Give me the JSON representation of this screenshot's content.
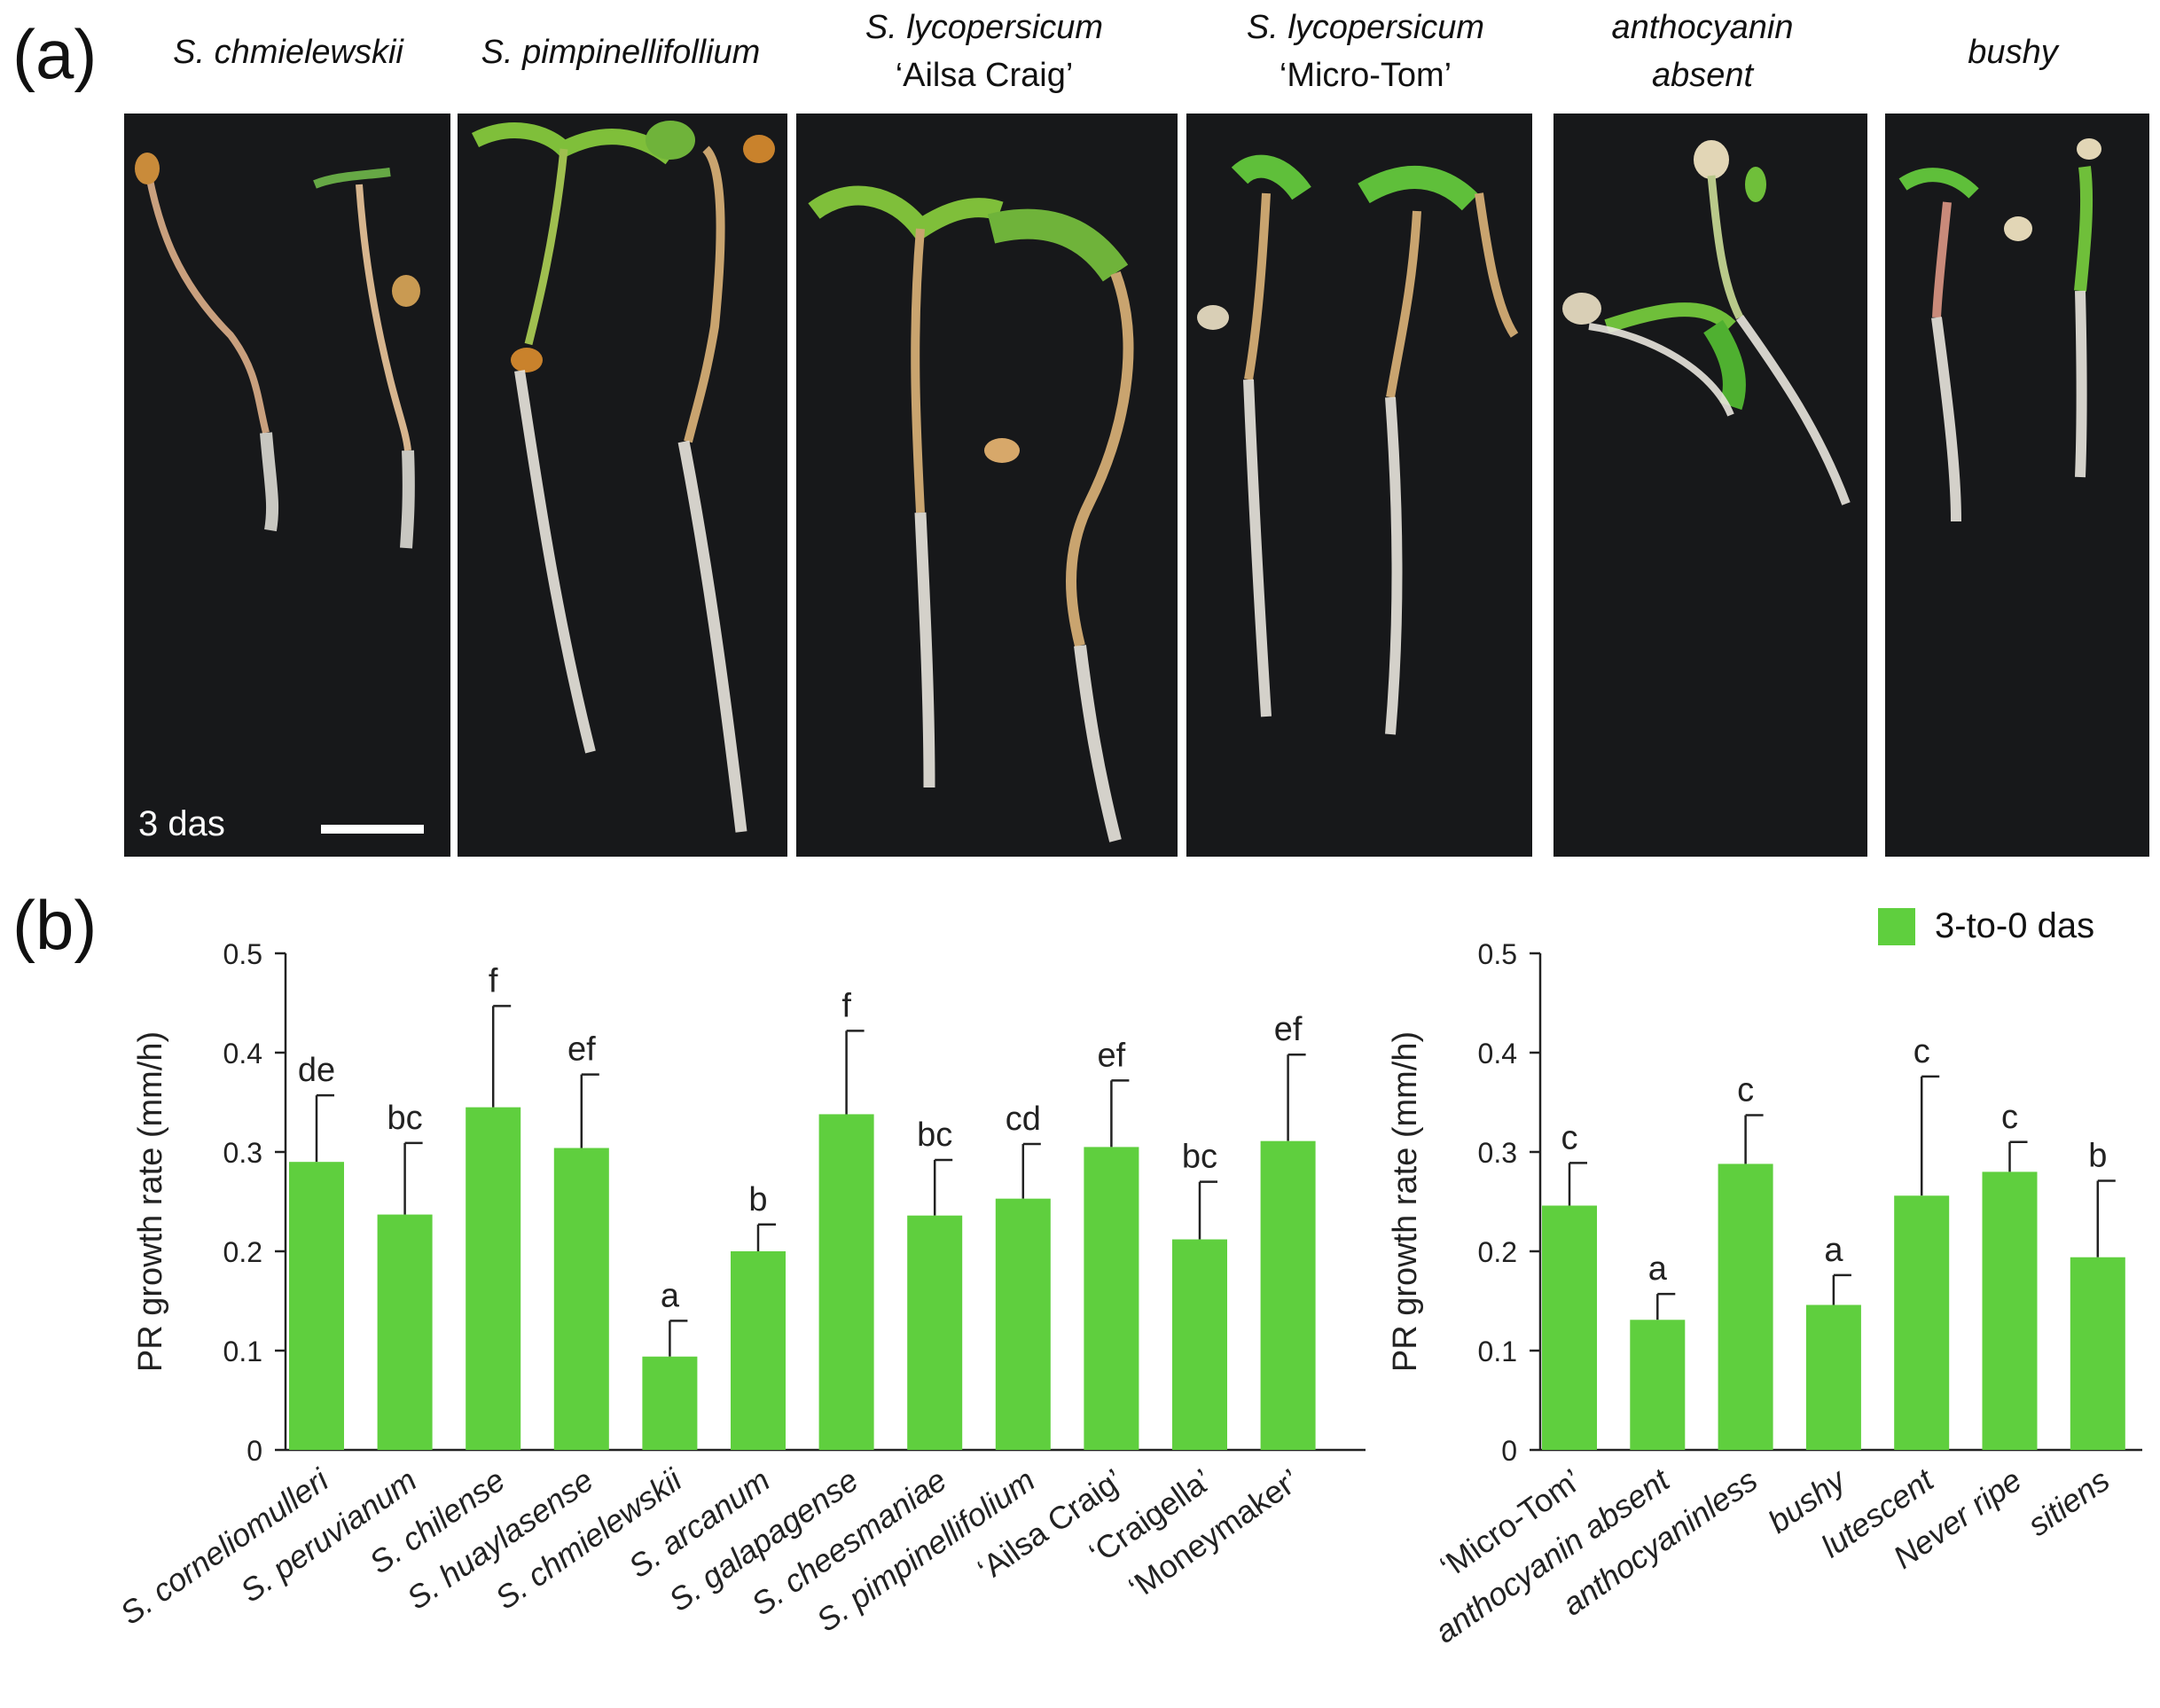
{
  "panel_a": {
    "letter": "(a)",
    "scale_text": "3 das",
    "photos": [
      {
        "title": [
          "S. chmielewskii"
        ],
        "name": "photo-s-chmielewskii"
      },
      {
        "title": [
          "S. pimpinellifollium"
        ],
        "name": "photo-s-pimpinellifollium"
      },
      {
        "title": [
          "S. lycopersicum",
          "‘Ailsa Craig’"
        ],
        "name": "photo-ailsa-craig"
      },
      {
        "title": [
          "S. lycopersicum",
          "‘Micro-Tom’"
        ],
        "name": "photo-micro-tom"
      },
      {
        "title": [
          "anthocyanin",
          "absent"
        ],
        "name": "photo-anthocyanin-absent"
      },
      {
        "title": [
          "bushy"
        ],
        "name": "photo-bushy"
      }
    ]
  },
  "panel_b": {
    "letter": "(b)",
    "legend": {
      "label": "3-to-0 das",
      "color": "#5fcf3e"
    }
  },
  "chart_data": [
    {
      "type": "bar",
      "title": "",
      "xlabel": "",
      "ylabel": "PR growth rate (mm/h)",
      "ylim": [
        0,
        0.5
      ],
      "yticks": [
        "0",
        "0.1",
        "0.2",
        "0.3",
        "0.4",
        "0.5"
      ],
      "categories": [
        "S. corneliomulleri",
        "S. peruvianum",
        "S. chilense",
        "S. huaylasense",
        "S. chmielewskii",
        "S. arcanum",
        "S. galapagense",
        "S. cheesmaniae",
        "S. pimpinellifolium",
        "‘Ailsa Craig’",
        "‘Craigella’",
        "‘Moneymaker’"
      ],
      "series": [
        {
          "name": "3-to-0 das",
          "color": "#5fcf3e",
          "values": [
            0.29,
            0.237,
            0.345,
            0.304,
            0.094,
            0.2,
            0.338,
            0.236,
            0.253,
            0.305,
            0.212,
            0.311
          ],
          "errors": [
            0.067,
            0.072,
            0.102,
            0.074,
            0.036,
            0.027,
            0.084,
            0.056,
            0.055,
            0.067,
            0.058,
            0.087
          ],
          "letters": [
            "de",
            "bc",
            "f",
            "ef",
            "a",
            "b",
            "f",
            "bc",
            "cd",
            "ef",
            "bc",
            "ef"
          ]
        }
      ]
    },
    {
      "type": "bar",
      "title": "",
      "xlabel": "",
      "ylabel": "PR growth rate (mm/h)",
      "ylim": [
        0,
        0.5
      ],
      "yticks": [
        "0",
        "0.1",
        "0.2",
        "0.3",
        "0.4",
        "0.5"
      ],
      "categories": [
        "‘Micro-Tom’",
        "anthocyanin absent",
        "anthocyaninless",
        "bushy",
        "lutescent",
        "Never ripe",
        "sitiens"
      ],
      "series": [
        {
          "name": "3-to-0 das",
          "color": "#5fcf3e",
          "values": [
            0.246,
            0.131,
            0.288,
            0.146,
            0.256,
            0.28,
            0.194
          ],
          "errors": [
            0.043,
            0.026,
            0.049,
            0.03,
            0.12,
            0.03,
            0.077
          ],
          "letters": [
            "c",
            "a",
            "c",
            "a",
            "c",
            "c",
            "b"
          ]
        }
      ]
    }
  ]
}
